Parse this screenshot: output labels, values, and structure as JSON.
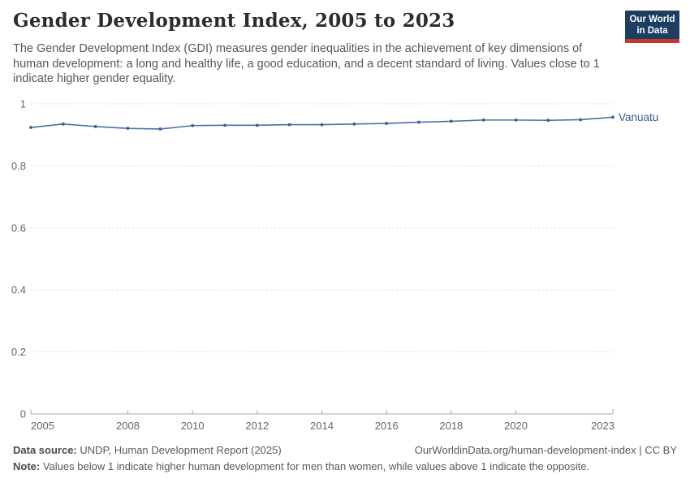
{
  "header": {
    "title": "Gender Development Index, 2005 to 2023",
    "subtitle": "The Gender Development Index (GDI) measures gender inequalities in the achievement of key dimensions of human development: a long and healthy life, a good education, and a decent standard of living. Values close to 1 indicate higher gender equality."
  },
  "logo": {
    "line1": "Our World",
    "line2": "in Data",
    "bg_color": "#1d3d63",
    "accent_color": "#c0392b"
  },
  "chart_data": {
    "type": "line",
    "title": "Gender Development Index, 2005 to 2023",
    "x": [
      2005,
      2006,
      2007,
      2008,
      2009,
      2010,
      2011,
      2012,
      2013,
      2014,
      2015,
      2016,
      2017,
      2018,
      2019,
      2020,
      2021,
      2022,
      2023
    ],
    "series": [
      {
        "name": "Vanuatu",
        "color": "#4c6ea8",
        "marker_color": "#3d5c94",
        "label_color": "#3d5c94",
        "values": [
          0.924,
          0.935,
          0.927,
          0.921,
          0.919,
          0.93,
          0.931,
          0.931,
          0.933,
          0.933,
          0.935,
          0.937,
          0.941,
          0.944,
          0.948,
          0.948,
          0.947,
          0.949,
          0.957
        ]
      }
    ],
    "ylim": [
      0,
      1
    ],
    "yticks": [
      0,
      0.2,
      0.4,
      0.6,
      0.8,
      1
    ],
    "xticks": [
      2005,
      2008,
      2010,
      2012,
      2014,
      2016,
      2018,
      2020,
      2023
    ],
    "grid": "horizontal-dashed",
    "legend": "end-of-line-label"
  },
  "footer": {
    "source_label": "Data source:",
    "source_text": "UNDP, Human Development Report (2025)",
    "citation": "OurWorldinData.org/human-development-index | CC BY",
    "note_label": "Note:",
    "note_text": "Values below 1 indicate higher human development for men than women, while values above 1 indicate the opposite."
  },
  "colors": {
    "grid": "#dddddd",
    "axis": "#a8a8a8",
    "tick_label": "#666666",
    "title": "#2d2d2d",
    "subtitle": "#575757",
    "footer": "#5a5a5a"
  }
}
